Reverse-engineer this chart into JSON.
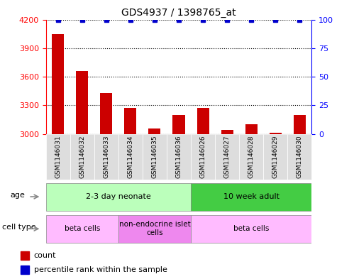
{
  "title": "GDS4937 / 1398765_at",
  "samples": [
    "GSM1146031",
    "GSM1146032",
    "GSM1146033",
    "GSM1146034",
    "GSM1146035",
    "GSM1146036",
    "GSM1146026",
    "GSM1146027",
    "GSM1146028",
    "GSM1146029",
    "GSM1146030"
  ],
  "counts": [
    4050,
    3660,
    3430,
    3270,
    3060,
    3200,
    3270,
    3040,
    3100,
    3010,
    3200
  ],
  "percentiles": [
    100,
    100,
    100,
    100,
    100,
    100,
    100,
    100,
    100,
    100,
    100
  ],
  "ylim_left": [
    3000,
    4200
  ],
  "ylim_right": [
    0,
    100
  ],
  "yticks_left": [
    3000,
    3300,
    3600,
    3900,
    4200
  ],
  "yticks_right": [
    0,
    25,
    50,
    75,
    100
  ],
  "bar_color": "#cc0000",
  "dot_color": "#0000cc",
  "age_groups": [
    {
      "label": "2-3 day neonate",
      "start": 0,
      "end": 5,
      "color": "#bbffbb"
    },
    {
      "label": "10 week adult",
      "start": 6,
      "end": 10,
      "color": "#44cc44"
    }
  ],
  "cell_type_groups": [
    {
      "label": "beta cells",
      "start": 0,
      "end": 2,
      "color": "#ffbbff"
    },
    {
      "label": "non-endocrine islet\ncells",
      "start": 3,
      "end": 5,
      "color": "#ee88ee"
    },
    {
      "label": "beta cells",
      "start": 6,
      "end": 10,
      "color": "#ffbbff"
    }
  ],
  "legend_red_label": "count",
  "legend_blue_label": "percentile rank within the sample",
  "row_label_age": "age",
  "row_label_cell": "cell type"
}
